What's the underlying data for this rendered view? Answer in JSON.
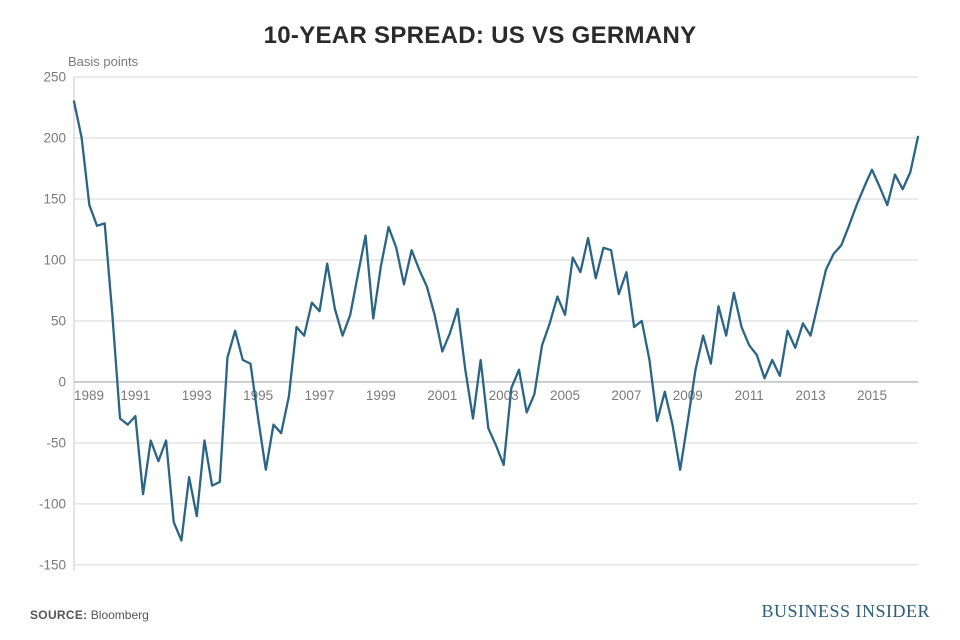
{
  "chart": {
    "type": "line",
    "title": "10-YEAR SPREAD: US VS GERMANY",
    "y_axis_label": "Basis points",
    "source_label": "SOURCE:",
    "source_value": "Bloomberg",
    "brand": "BUSINESS INSIDER",
    "line_color": "#2b6584",
    "line_width": 2.3,
    "grid_color": "#d6d6d6",
    "zero_line_color": "#b8b8b8",
    "axis_line_color": "#c8c8c8",
    "tick_text_color": "#7a7a7a",
    "background_color": "#ffffff",
    "title_color": "#2a2a2a",
    "title_fontsize": 24,
    "label_fontsize": 13,
    "tick_fontsize": 13.5,
    "x_domain": [
      1989,
      2016.5
    ],
    "y_domain": [
      -155,
      250
    ],
    "y_ticks": [
      -150,
      -100,
      -50,
      0,
      50,
      100,
      150,
      200,
      250
    ],
    "x_ticks": [
      1989,
      1991,
      1993,
      1995,
      1997,
      1999,
      2001,
      2003,
      2005,
      2007,
      2009,
      2011,
      2013,
      2015
    ],
    "data": [
      [
        1989.0,
        230
      ],
      [
        1989.25,
        200
      ],
      [
        1989.5,
        145
      ],
      [
        1989.75,
        128
      ],
      [
        1990.0,
        130
      ],
      [
        1990.25,
        55
      ],
      [
        1990.5,
        -30
      ],
      [
        1990.75,
        -35
      ],
      [
        1991.0,
        -28
      ],
      [
        1991.25,
        -92
      ],
      [
        1991.5,
        -48
      ],
      [
        1991.75,
        -65
      ],
      [
        1992.0,
        -48
      ],
      [
        1992.25,
        -115
      ],
      [
        1992.5,
        -130
      ],
      [
        1992.75,
        -78
      ],
      [
        1993.0,
        -110
      ],
      [
        1993.25,
        -48
      ],
      [
        1993.5,
        -85
      ],
      [
        1993.75,
        -82
      ],
      [
        1994.0,
        20
      ],
      [
        1994.25,
        42
      ],
      [
        1994.5,
        18
      ],
      [
        1994.75,
        15
      ],
      [
        1995.0,
        -30
      ],
      [
        1995.25,
        -72
      ],
      [
        1995.5,
        -35
      ],
      [
        1995.75,
        -42
      ],
      [
        1996.0,
        -12
      ],
      [
        1996.25,
        45
      ],
      [
        1996.5,
        38
      ],
      [
        1996.75,
        65
      ],
      [
        1997.0,
        58
      ],
      [
        1997.25,
        97
      ],
      [
        1997.5,
        60
      ],
      [
        1997.75,
        38
      ],
      [
        1998.0,
        55
      ],
      [
        1998.25,
        88
      ],
      [
        1998.5,
        120
      ],
      [
        1998.75,
        52
      ],
      [
        1999.0,
        95
      ],
      [
        1999.25,
        127
      ],
      [
        1999.5,
        110
      ],
      [
        1999.75,
        80
      ],
      [
        2000.0,
        108
      ],
      [
        2000.25,
        92
      ],
      [
        2000.5,
        78
      ],
      [
        2000.75,
        55
      ],
      [
        2001.0,
        25
      ],
      [
        2001.25,
        40
      ],
      [
        2001.5,
        60
      ],
      [
        2001.75,
        10
      ],
      [
        2002.0,
        -30
      ],
      [
        2002.25,
        18
      ],
      [
        2002.5,
        -38
      ],
      [
        2002.75,
        -52
      ],
      [
        2003.0,
        -68
      ],
      [
        2003.25,
        -5
      ],
      [
        2003.5,
        10
      ],
      [
        2003.75,
        -25
      ],
      [
        2004.0,
        -10
      ],
      [
        2004.25,
        30
      ],
      [
        2004.5,
        48
      ],
      [
        2004.75,
        70
      ],
      [
        2005.0,
        55
      ],
      [
        2005.25,
        102
      ],
      [
        2005.5,
        90
      ],
      [
        2005.75,
        118
      ],
      [
        2006.0,
        85
      ],
      [
        2006.25,
        110
      ],
      [
        2006.5,
        108
      ],
      [
        2006.75,
        72
      ],
      [
        2007.0,
        90
      ],
      [
        2007.25,
        45
      ],
      [
        2007.5,
        50
      ],
      [
        2007.75,
        18
      ],
      [
        2008.0,
        -32
      ],
      [
        2008.25,
        -8
      ],
      [
        2008.5,
        -35
      ],
      [
        2008.75,
        -72
      ],
      [
        2009.0,
        -32
      ],
      [
        2009.25,
        10
      ],
      [
        2009.5,
        38
      ],
      [
        2009.75,
        15
      ],
      [
        2010.0,
        62
      ],
      [
        2010.25,
        38
      ],
      [
        2010.5,
        73
      ],
      [
        2010.75,
        45
      ],
      [
        2011.0,
        30
      ],
      [
        2011.25,
        22
      ],
      [
        2011.5,
        3
      ],
      [
        2011.75,
        18
      ],
      [
        2012.0,
        5
      ],
      [
        2012.25,
        42
      ],
      [
        2012.5,
        28
      ],
      [
        2012.75,
        48
      ],
      [
        2013.0,
        38
      ],
      [
        2013.25,
        65
      ],
      [
        2013.5,
        92
      ],
      [
        2013.75,
        105
      ],
      [
        2014.0,
        112
      ],
      [
        2014.25,
        128
      ],
      [
        2014.5,
        145
      ],
      [
        2014.75,
        160
      ],
      [
        2015.0,
        174
      ],
      [
        2015.25,
        160
      ],
      [
        2015.5,
        145
      ],
      [
        2015.75,
        170
      ],
      [
        2016.0,
        158
      ],
      [
        2016.25,
        172
      ],
      [
        2016.5,
        201
      ]
    ]
  }
}
